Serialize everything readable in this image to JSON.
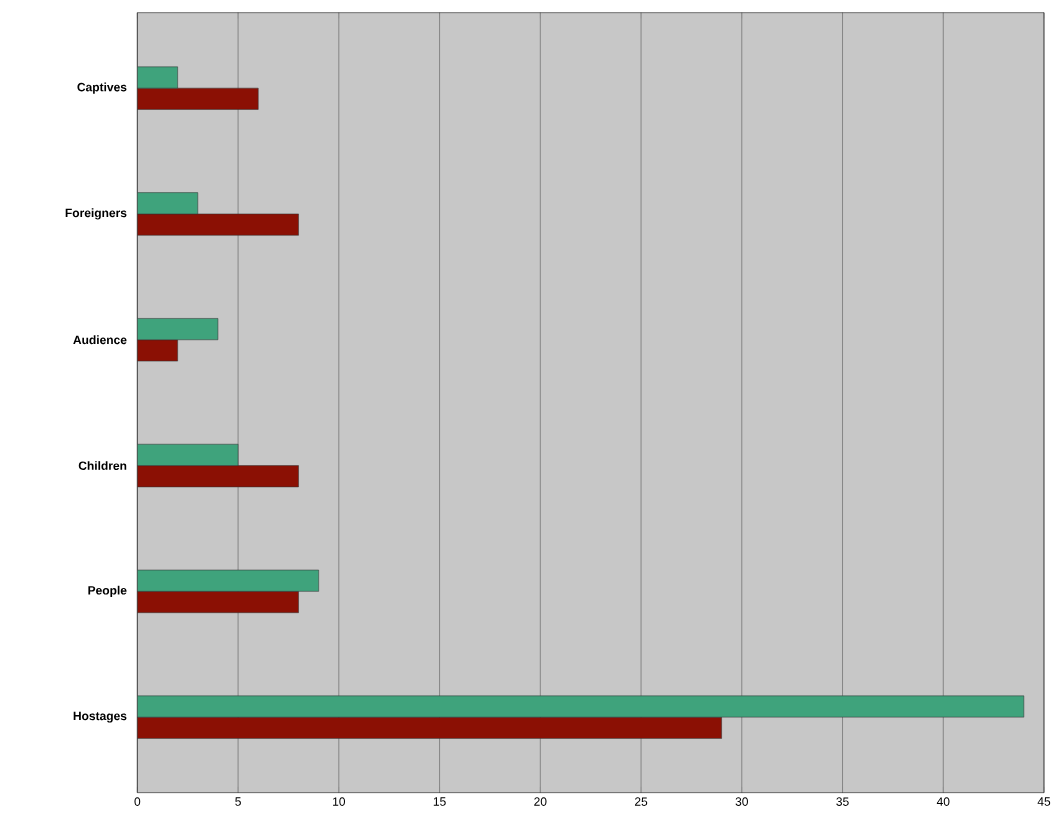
{
  "chart_data": {
    "type": "bar",
    "orientation": "horizontal",
    "categories": [
      "Captives",
      "Foreigners",
      "Audience",
      "Children",
      "People",
      "Hostages"
    ],
    "series": [
      {
        "color": "#8b1004",
        "values": [
          6,
          8,
          2,
          8,
          8,
          29
        ]
      },
      {
        "color": "#3fa37c",
        "values": [
          2,
          3,
          4,
          5,
          9,
          44
        ]
      }
    ],
    "xlim": [
      0,
      45
    ],
    "xticks": [
      0,
      5,
      10,
      15,
      20,
      25,
      30,
      35,
      40,
      45
    ],
    "grid": "x"
  }
}
